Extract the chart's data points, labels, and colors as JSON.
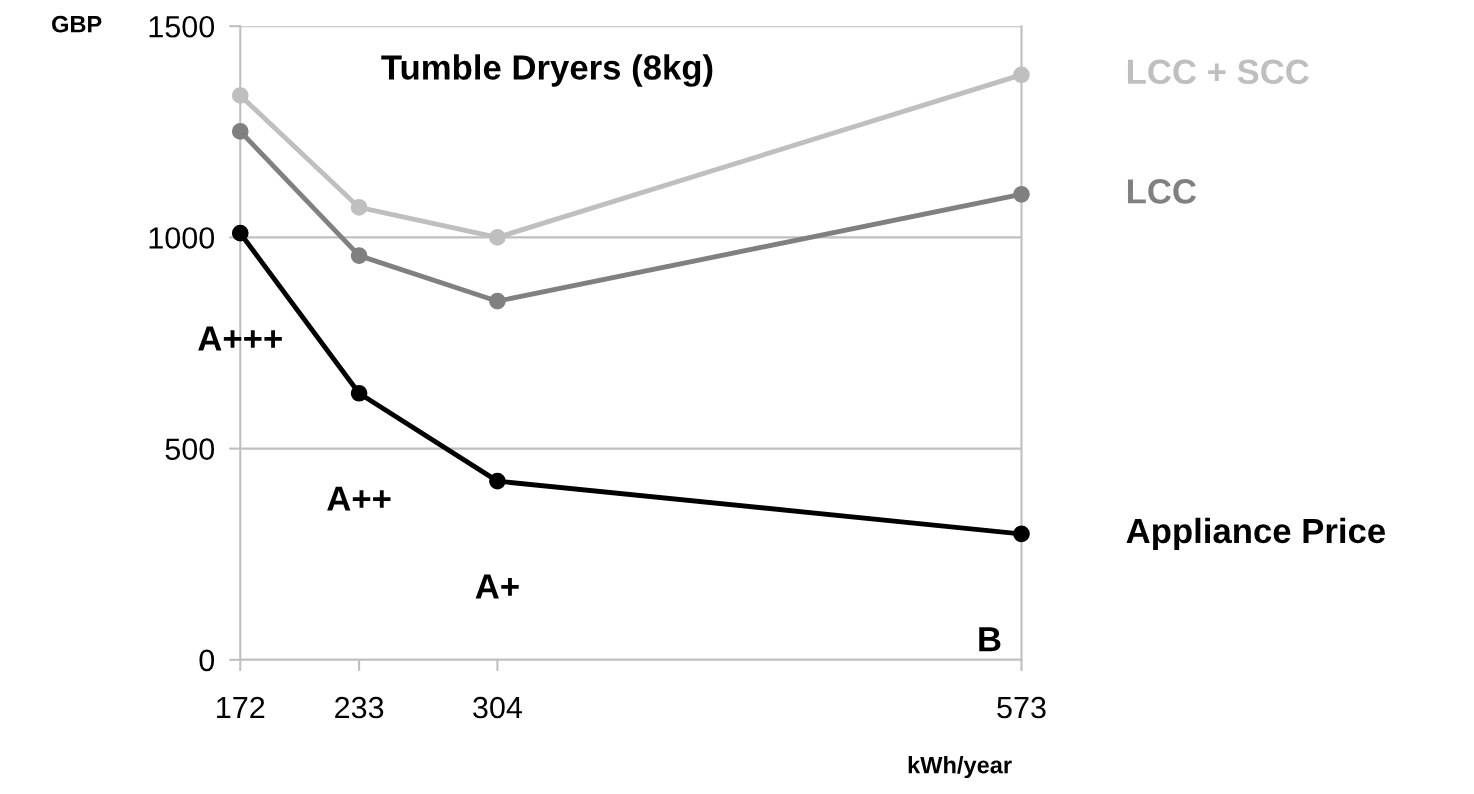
{
  "chart_data": {
    "type": "line",
    "title": "Tumble Dryers (8kg)",
    "xlabel": "kWh/year",
    "ylabel": "GBP",
    "x": [
      172,
      233,
      304,
      573
    ],
    "series": [
      {
        "name": "LCC + SCC",
        "color": "#bfbfbf",
        "values": [
          1336,
          1071,
          1000,
          1385
        ]
      },
      {
        "name": "LCC",
        "color": "#808080",
        "values": [
          1251,
          957,
          849,
          1102
        ]
      },
      {
        "name": "Appliance Price",
        "color": "#000000",
        "values": [
          1010,
          631,
          423,
          298
        ]
      }
    ],
    "annotations": [
      "A+++",
      "A++",
      "A+",
      "B"
    ],
    "xlim": [
      172,
      573
    ],
    "xticks": [
      172,
      233,
      304,
      573
    ],
    "ylim": [
      0,
      1500
    ],
    "yticks": [
      0,
      500,
      1000,
      1500
    ],
    "grid": "y",
    "marker": "circle",
    "line_style": "solid",
    "legend": false
  }
}
